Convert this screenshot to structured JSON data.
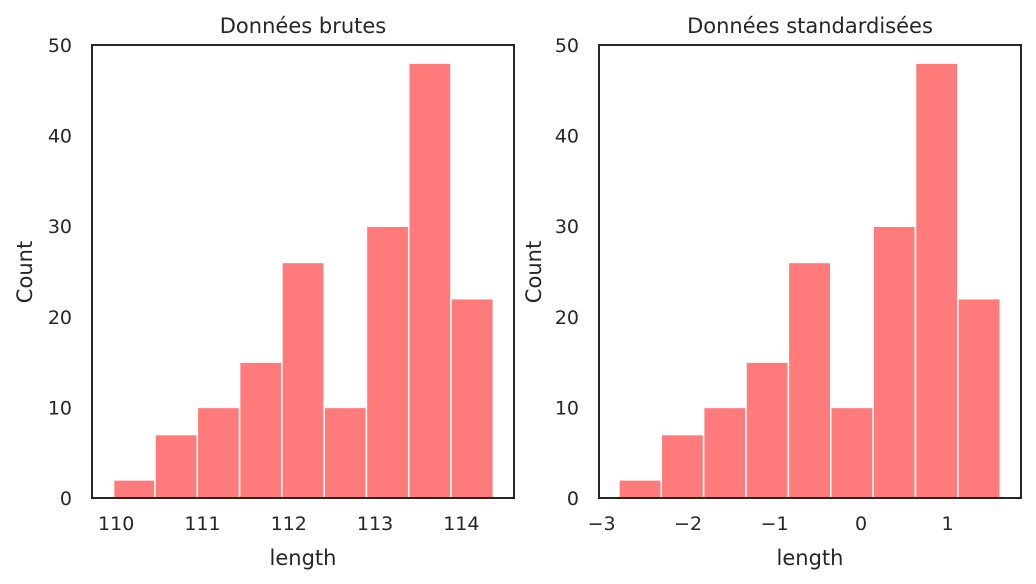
{
  "chart_data": [
    {
      "type": "bar",
      "title": "Données brutes",
      "xlabel": "length",
      "ylabel": "Count",
      "bar_color": "#ff7b7b",
      "edge_color": "#ffffff",
      "bins": [
        {
          "x0": 109.97,
          "x1": 110.45,
          "count": 2
        },
        {
          "x0": 110.45,
          "x1": 110.94,
          "count": 7
        },
        {
          "x0": 110.94,
          "x1": 111.43,
          "count": 10
        },
        {
          "x0": 111.43,
          "x1": 111.92,
          "count": 15
        },
        {
          "x0": 111.92,
          "x1": 112.41,
          "count": 26
        },
        {
          "x0": 112.41,
          "x1": 112.9,
          "count": 10
        },
        {
          "x0": 112.9,
          "x1": 113.39,
          "count": 30
        },
        {
          "x0": 113.39,
          "x1": 113.88,
          "count": 48
        },
        {
          "x0": 113.88,
          "x1": 114.37,
          "count": 22
        }
      ],
      "xlim": [
        109.72,
        114.61
      ],
      "ylim": [
        0,
        50
      ],
      "xticks": [
        110,
        111,
        112,
        113,
        114
      ],
      "xtick_labels": [
        "110",
        "111",
        "112",
        "113",
        "114"
      ],
      "yticks": [
        0,
        10,
        20,
        30,
        40,
        50
      ],
      "ytick_labels": [
        "0",
        "10",
        "20",
        "30",
        "40",
        "50"
      ],
      "grid": false
    },
    {
      "type": "bar",
      "title": "Données standardisées",
      "xlabel": "length",
      "ylabel": "Count",
      "bar_color": "#ff7b7b",
      "edge_color": "#ffffff",
      "bins": [
        {
          "x0": -2.8,
          "x1": -2.31,
          "count": 2
        },
        {
          "x0": -2.31,
          "x1": -1.82,
          "count": 7
        },
        {
          "x0": -1.82,
          "x1": -1.33,
          "count": 10
        },
        {
          "x0": -1.33,
          "x1": -0.84,
          "count": 15
        },
        {
          "x0": -0.84,
          "x1": -0.35,
          "count": 26
        },
        {
          "x0": -0.35,
          "x1": 0.14,
          "count": 10
        },
        {
          "x0": 0.14,
          "x1": 0.63,
          "count": 30
        },
        {
          "x0": 0.63,
          "x1": 1.12,
          "count": 48
        },
        {
          "x0": 1.12,
          "x1": 1.61,
          "count": 22
        }
      ],
      "xlim": [
        -3.03,
        1.85
      ],
      "ylim": [
        0,
        50
      ],
      "xticks": [
        -3,
        -2,
        -1,
        0,
        1
      ],
      "xtick_labels": [
        "−3",
        "−2",
        "−1",
        "0",
        "1"
      ],
      "yticks": [
        0,
        10,
        20,
        30,
        40,
        50
      ],
      "ytick_labels": [
        "0",
        "10",
        "20",
        "30",
        "40",
        "50"
      ],
      "grid": false
    }
  ]
}
